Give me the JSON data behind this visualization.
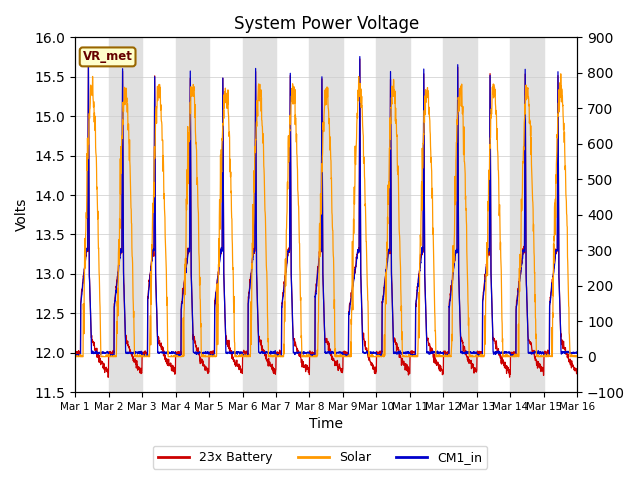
{
  "title": "System Power Voltage",
  "xlabel": "Time",
  "ylabel": "Volts",
  "ylim_left": [
    11.5,
    16.0
  ],
  "ylim_right": [
    -100,
    900
  ],
  "yticks_left": [
    11.5,
    12.0,
    12.5,
    13.0,
    13.5,
    14.0,
    14.5,
    15.0,
    15.5,
    16.0
  ],
  "yticks_right": [
    -100,
    0,
    100,
    200,
    300,
    400,
    500,
    600,
    700,
    800,
    900
  ],
  "xtick_labels": [
    "Mar 1",
    "Mar 2",
    "Mar 3",
    "Mar 4",
    "Mar 5",
    "Mar 6",
    "Mar 7",
    "Mar 8",
    "Mar 9",
    "Mar 10",
    "Mar 11",
    "Mar 12",
    "Mar 13",
    "Mar 14",
    "Mar 15",
    "Mar 16"
  ],
  "n_days": 15,
  "battery_color": "#cc0000",
  "solar_color": "#ff9900",
  "cm1_color": "#0000cc",
  "legend_items": [
    "23x Battery",
    "Solar",
    "CM1_in"
  ],
  "annotation_text": "VR_met",
  "bg_band_color": "#e0e0e0",
  "grid_color": "#cccccc"
}
